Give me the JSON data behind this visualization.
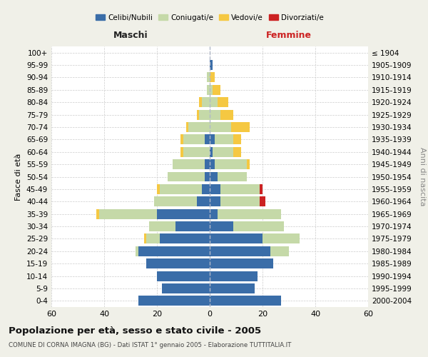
{
  "age_groups": [
    "0-4",
    "5-9",
    "10-14",
    "15-19",
    "20-24",
    "25-29",
    "30-34",
    "35-39",
    "40-44",
    "45-49",
    "50-54",
    "55-59",
    "60-64",
    "65-69",
    "70-74",
    "75-79",
    "80-84",
    "85-89",
    "90-94",
    "95-99",
    "100+"
  ],
  "birth_years": [
    "2000-2004",
    "1995-1999",
    "1990-1994",
    "1985-1989",
    "1980-1984",
    "1975-1979",
    "1970-1974",
    "1965-1969",
    "1960-1964",
    "1955-1959",
    "1950-1954",
    "1945-1949",
    "1940-1944",
    "1935-1939",
    "1930-1934",
    "1925-1929",
    "1920-1924",
    "1915-1919",
    "1910-1914",
    "1905-1909",
    "≤ 1904"
  ],
  "male": {
    "celibi": [
      27,
      18,
      20,
      24,
      27,
      19,
      13,
      20,
      5,
      3,
      2,
      2,
      0,
      2,
      0,
      0,
      0,
      0,
      0,
      0,
      0
    ],
    "coniugati": [
      0,
      0,
      0,
      0,
      1,
      5,
      10,
      22,
      16,
      16,
      14,
      12,
      10,
      8,
      8,
      4,
      3,
      1,
      1,
      0,
      0
    ],
    "vedovi": [
      0,
      0,
      0,
      0,
      0,
      1,
      0,
      1,
      0,
      1,
      0,
      0,
      1,
      1,
      1,
      1,
      1,
      0,
      0,
      0,
      0
    ],
    "divorziati": [
      0,
      0,
      0,
      0,
      0,
      0,
      0,
      0,
      0,
      0,
      0,
      0,
      0,
      0,
      0,
      0,
      0,
      0,
      0,
      0,
      0
    ]
  },
  "female": {
    "nubili": [
      27,
      17,
      18,
      24,
      23,
      20,
      9,
      3,
      4,
      4,
      3,
      2,
      1,
      2,
      0,
      0,
      0,
      0,
      0,
      1,
      0
    ],
    "coniugate": [
      0,
      0,
      0,
      0,
      7,
      14,
      19,
      24,
      15,
      15,
      11,
      12,
      8,
      7,
      8,
      4,
      3,
      1,
      0,
      0,
      0
    ],
    "vedove": [
      0,
      0,
      0,
      0,
      0,
      0,
      0,
      0,
      0,
      0,
      0,
      1,
      3,
      3,
      7,
      5,
      4,
      3,
      2,
      0,
      0
    ],
    "divorziate": [
      0,
      0,
      0,
      0,
      0,
      0,
      0,
      0,
      2,
      1,
      0,
      0,
      0,
      0,
      0,
      0,
      0,
      0,
      0,
      0,
      0
    ]
  },
  "colors": {
    "celibi": "#3a6da8",
    "coniugati": "#c5d9a8",
    "vedovi": "#f5c842",
    "divorziati": "#cc2222"
  },
  "xlim": 60,
  "title": "Popolazione per età, sesso e stato civile - 2005",
  "subtitle": "COMUNE DI CORNA IMAGNA (BG) - Dati ISTAT 1° gennaio 2005 - Elaborazione TUTTITALIA.IT",
  "xlabel_left": "Maschi",
  "xlabel_right": "Femmine",
  "ylabel_left": "Fasce di età",
  "ylabel_right": "Anni di nascita",
  "bg_color": "#f0f0e8",
  "plot_bg": "#ffffff"
}
